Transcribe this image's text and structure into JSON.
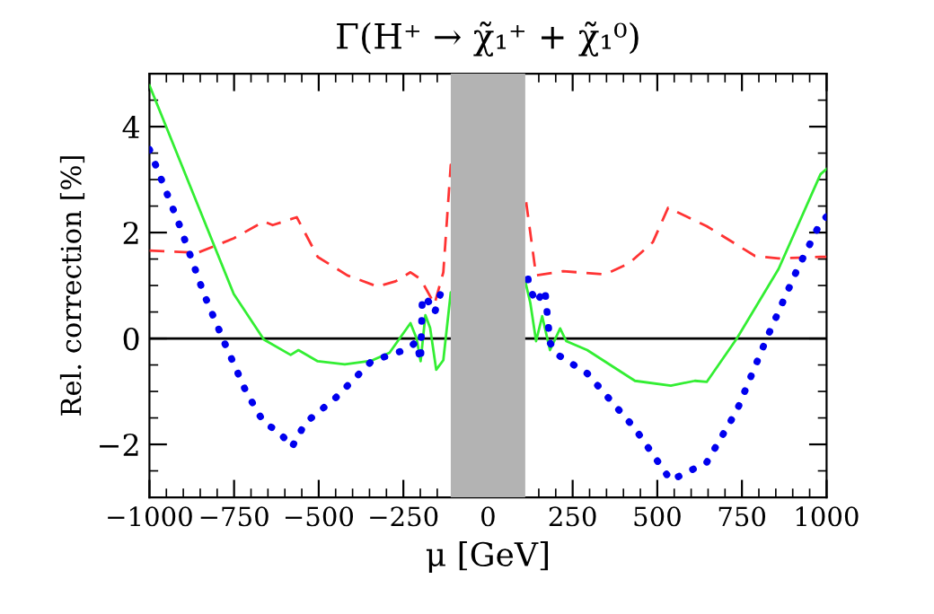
{
  "chart_data": {
    "type": "line",
    "title": "Γ(H⁺ → χ̃₁⁺ + χ̃₁⁰)",
    "xlabel": "μ [GeV]",
    "ylabel": "Rel. correction [%]",
    "xlim": [
      -1000,
      1000
    ],
    "ylim": [
      -3,
      5
    ],
    "xticks": [
      -1000,
      -750,
      -500,
      -250,
      0,
      250,
      500,
      750,
      1000
    ],
    "yticks": [
      -2,
      0,
      2,
      4
    ],
    "ref_lines": [
      {
        "axis": "y",
        "value": 0,
        "color": "#000000"
      }
    ],
    "bands": [
      {
        "axis": "x",
        "from": -110,
        "to": 110,
        "color": "#b3b3b3"
      }
    ],
    "series": [
      {
        "color": "#33ee33",
        "line_style": "solid",
        "x": [
          -1000,
          -751,
          -662,
          -583,
          -560,
          -503,
          -423,
          -344,
          -291,
          -229,
          -211,
          -199,
          -185,
          -171,
          -153,
          -132,
          -110,
          110,
          125,
          142,
          160,
          183,
          213,
          231,
          293,
          434,
          540,
          611,
          646,
          735,
          858,
          982,
          1000
        ],
        "values": [
          4.78,
          0.84,
          -0.02,
          -0.31,
          -0.22,
          -0.43,
          -0.49,
          -0.42,
          -0.27,
          0.29,
          0.0,
          -0.43,
          0.44,
          0.2,
          -0.59,
          -0.41,
          0.87,
          1.08,
          0.67,
          -0.05,
          0.42,
          -0.22,
          0.19,
          -0.05,
          -0.22,
          -0.8,
          -0.89,
          -0.8,
          -0.82,
          0.0,
          1.31,
          3.1,
          3.2
        ]
      },
      {
        "color": "#ff3333",
        "line_style": "dashed",
        "x": [
          -1000,
          -857,
          -751,
          -662,
          -636,
          -565,
          -503,
          -415,
          -326,
          -273,
          -229,
          -199,
          -158,
          -132,
          -110,
          110,
          142,
          222,
          346,
          417,
          487,
          532,
          646,
          788,
          858,
          982,
          1000
        ],
        "values": [
          1.66,
          1.62,
          1.89,
          2.21,
          2.14,
          2.29,
          1.54,
          1.19,
          0.98,
          1.08,
          1.25,
          1.12,
          0.65,
          1.25,
          3.28,
          2.7,
          1.19,
          1.27,
          1.21,
          1.42,
          1.82,
          2.47,
          2.12,
          1.56,
          1.51,
          1.54,
          1.54
        ]
      },
      {
        "color": "#0000ee",
        "line_style": "dotted",
        "x": [
          -1000,
          -910,
          -839,
          -777,
          -715,
          -662,
          -618,
          -579,
          -539,
          -450,
          -344,
          -238,
          -211,
          -199,
          -194,
          -176,
          -158,
          -141,
          -114,
          116,
          121,
          142,
          168,
          183,
          204,
          293,
          434,
          540,
          646,
          735,
          823,
          911,
          982,
          1000
        ],
        "values": [
          3.57,
          2.12,
          0.84,
          -0.1,
          -1.0,
          -1.59,
          -1.76,
          -2.05,
          -1.59,
          -1.12,
          -0.43,
          -0.2,
          -0.06,
          -0.43,
          0.79,
          0.7,
          0.48,
          0.83,
          0.83,
          1.23,
          1.0,
          0.67,
          0.93,
          -0.08,
          -0.3,
          -0.66,
          -1.7,
          -2.68,
          -2.34,
          -1.36,
          0.0,
          1.27,
          2.19,
          2.3
        ]
      }
    ]
  }
}
